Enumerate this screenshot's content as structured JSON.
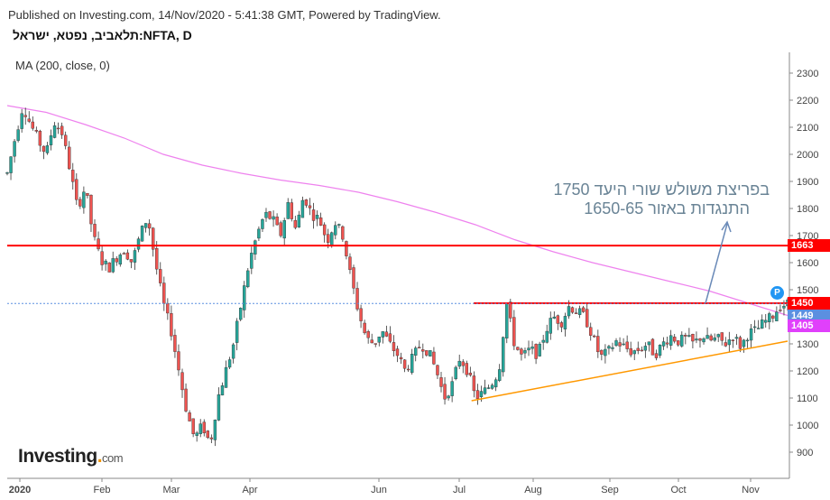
{
  "header": {
    "published": "Published on Investing.com, 14/Nov/2020 - 5:41:38 GMT, Powered by TradingView.",
    "symbol": "תלאביב, נפטא, ישראל:NFTA, D",
    "indicator": "MA (200, close, 0)"
  },
  "logo": {
    "brand": "Investing",
    "suffix": "com"
  },
  "annotation": {
    "line1": "בפריצת משולש שורי היעד 1750",
    "line2": "התנגדות באזור 1650-65"
  },
  "price_badges": [
    {
      "label": "1663",
      "value": 1663,
      "color": "#ff0000"
    },
    {
      "label": "1450",
      "value": 1450,
      "color": "#ff0000"
    },
    {
      "label": "1449",
      "value": 1449,
      "color": "#5b8fe0"
    },
    {
      "label": "1405",
      "value": 1405,
      "color": "#e040fb"
    }
  ],
  "last_price_marker": "P",
  "chart_data": {
    "type": "candlestick",
    "title": "תלאביב, נפטא, ישראל:NFTA, D",
    "y_ticks": [
      900,
      1000,
      1100,
      1200,
      1300,
      1400,
      1500,
      1600,
      1700,
      1800,
      1900,
      2000,
      2100,
      2200,
      2300
    ],
    "x_ticks": [
      "2020",
      "Feb",
      "Mar",
      "Apr",
      "Jun",
      "Jul",
      "Aug",
      "Sep",
      "Oct",
      "Nov"
    ],
    "ylim": [
      850,
      2330
    ],
    "grid": false,
    "colors": {
      "up": "#26a69a",
      "down": "#ef5350",
      "ma": "#ee82ee",
      "support": "#ff9800",
      "resistance": "#ff0000"
    },
    "horizontal_levels": [
      {
        "name": "resistance",
        "value": 1663
      },
      {
        "name": "breakout",
        "value": 1450
      }
    ],
    "last_price": 1449,
    "ma200_level": 1405,
    "trendline": {
      "from": [
        "Jul",
        1090
      ],
      "to": [
        "Nov",
        1310
      ]
    },
    "ma200_path": [
      {
        "x": 0,
        "y": 2180
      },
      {
        "x": 0.05,
        "y": 2155
      },
      {
        "x": 0.1,
        "y": 2110
      },
      {
        "x": 0.15,
        "y": 2060
      },
      {
        "x": 0.2,
        "y": 2000
      },
      {
        "x": 0.25,
        "y": 1960
      },
      {
        "x": 0.3,
        "y": 1930
      },
      {
        "x": 0.35,
        "y": 1905
      },
      {
        "x": 0.4,
        "y": 1885
      },
      {
        "x": 0.45,
        "y": 1860
      },
      {
        "x": 0.5,
        "y": 1825
      },
      {
        "x": 0.55,
        "y": 1785
      },
      {
        "x": 0.6,
        "y": 1740
      },
      {
        "x": 0.65,
        "y": 1685
      },
      {
        "x": 0.7,
        "y": 1640
      },
      {
        "x": 0.75,
        "y": 1600
      },
      {
        "x": 0.8,
        "y": 1565
      },
      {
        "x": 0.85,
        "y": 1530
      },
      {
        "x": 0.9,
        "y": 1495
      },
      {
        "x": 0.95,
        "y": 1450
      },
      {
        "x": 1.0,
        "y": 1405
      }
    ],
    "price_path": [
      [
        0,
        1930
      ],
      [
        0.01,
        2060
      ],
      [
        0.02,
        2180
      ],
      [
        0.03,
        2110
      ],
      [
        0.04,
        2050
      ],
      [
        0.05,
        2000
      ],
      [
        0.06,
        2120
      ],
      [
        0.07,
        2080
      ],
      [
        0.08,
        1950
      ],
      [
        0.09,
        1800
      ],
      [
        0.1,
        1880
      ],
      [
        0.11,
        1700
      ],
      [
        0.12,
        1610
      ],
      [
        0.13,
        1580
      ],
      [
        0.14,
        1620
      ],
      [
        0.15,
        1650
      ],
      [
        0.16,
        1600
      ],
      [
        0.17,
        1700
      ],
      [
        0.18,
        1770
      ],
      [
        0.19,
        1600
      ],
      [
        0.2,
        1450
      ],
      [
        0.21,
        1350
      ],
      [
        0.22,
        1200
      ],
      [
        0.23,
        1050
      ],
      [
        0.24,
        950
      ],
      [
        0.25,
        1000
      ],
      [
        0.26,
        930
      ],
      [
        0.27,
        1100
      ],
      [
        0.28,
        1200
      ],
      [
        0.29,
        1300
      ],
      [
        0.3,
        1450
      ],
      [
        0.31,
        1600
      ],
      [
        0.32,
        1700
      ],
      [
        0.33,
        1780
      ],
      [
        0.34,
        1760
      ],
      [
        0.35,
        1700
      ],
      [
        0.36,
        1820
      ],
      [
        0.37,
        1720
      ],
      [
        0.38,
        1850
      ],
      [
        0.39,
        1780
      ],
      [
        0.4,
        1760
      ],
      [
        0.41,
        1680
      ],
      [
        0.42,
        1750
      ],
      [
        0.43,
        1700
      ],
      [
        0.44,
        1550
      ],
      [
        0.45,
        1420
      ],
      [
        0.46,
        1320
      ],
      [
        0.47,
        1300
      ],
      [
        0.48,
        1350
      ],
      [
        0.49,
        1300
      ],
      [
        0.5,
        1260
      ],
      [
        0.51,
        1200
      ],
      [
        0.52,
        1250
      ],
      [
        0.53,
        1300
      ],
      [
        0.54,
        1270
      ],
      [
        0.55,
        1200
      ],
      [
        0.56,
        1100
      ],
      [
        0.57,
        1150
      ],
      [
        0.58,
        1250
      ],
      [
        0.59,
        1200
      ],
      [
        0.6,
        1100
      ],
      [
        0.61,
        1120
      ],
      [
        0.62,
        1150
      ],
      [
        0.63,
        1200
      ],
      [
        0.64,
        1450
      ],
      [
        0.65,
        1300
      ],
      [
        0.66,
        1250
      ],
      [
        0.67,
        1280
      ],
      [
        0.68,
        1260
      ],
      [
        0.69,
        1350
      ],
      [
        0.7,
        1400
      ],
      [
        0.71,
        1380
      ],
      [
        0.72,
        1440
      ],
      [
        0.73,
        1420
      ],
      [
        0.74,
        1400
      ],
      [
        0.75,
        1330
      ],
      [
        0.76,
        1250
      ],
      [
        0.77,
        1270
      ],
      [
        0.78,
        1310
      ],
      [
        0.79,
        1290
      ],
      [
        0.8,
        1270
      ],
      [
        0.81,
        1280
      ],
      [
        0.82,
        1300
      ],
      [
        0.83,
        1260
      ],
      [
        0.84,
        1300
      ],
      [
        0.85,
        1330
      ],
      [
        0.86,
        1310
      ],
      [
        0.87,
        1320
      ],
      [
        0.88,
        1300
      ],
      [
        0.89,
        1330
      ],
      [
        0.9,
        1310
      ],
      [
        0.91,
        1320
      ],
      [
        0.92,
        1300
      ],
      [
        0.93,
        1330
      ],
      [
        0.94,
        1290
      ],
      [
        0.95,
        1340
      ],
      [
        0.96,
        1350
      ],
      [
        0.97,
        1380
      ],
      [
        0.98,
        1400
      ],
      [
        0.99,
        1440
      ],
      [
        1.0,
        1449
      ]
    ]
  }
}
